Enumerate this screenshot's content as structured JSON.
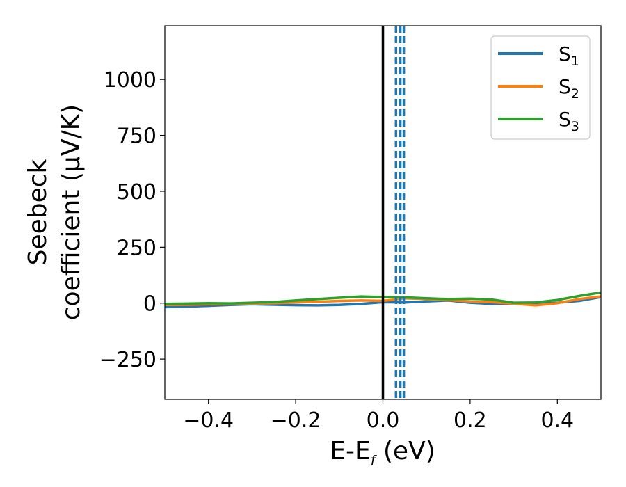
{
  "chart_data": {
    "type": "line",
    "xlabel": {
      "main": "E-E",
      "sub": "f",
      "suffix": " (eV)"
    },
    "ylabel": [
      "Seebeck",
      "coefficient  (μV/K)"
    ],
    "xlim": [
      -0.5,
      0.5
    ],
    "ylim": [
      -430,
      1240
    ],
    "xticks": [
      -0.4,
      -0.2,
      0.0,
      0.2,
      0.4
    ],
    "xtick_labels": [
      "−0.4",
      "−0.2",
      "0.0",
      "0.2",
      "0.4"
    ],
    "yticks": [
      -250,
      0,
      250,
      500,
      750,
      1000
    ],
    "ytick_labels": [
      "−250",
      "0",
      "250",
      "500",
      "750",
      "1000"
    ],
    "grid": false,
    "legend_position": "top-right",
    "vline_solid": {
      "x": 0.0,
      "color": "#000000"
    },
    "vlines_dashed": {
      "x": [
        0.03,
        0.04,
        0.048
      ],
      "color": "#1f77b4"
    },
    "series": [
      {
        "name": "S",
        "sub": "1",
        "color": "#1f77b4",
        "x": [
          -0.5,
          -0.45,
          -0.4,
          -0.35,
          -0.3,
          -0.25,
          -0.2,
          -0.15,
          -0.1,
          -0.05,
          0.0,
          0.05,
          0.1,
          0.15,
          0.2,
          0.25,
          0.3,
          0.35,
          0.4,
          0.45,
          0.5
        ],
        "y": [
          -18,
          -15,
          -12,
          -8,
          -5,
          -7,
          -9,
          -10,
          -8,
          -3,
          4,
          3,
          8,
          12,
          2,
          -3,
          -2,
          -4,
          2,
          10,
          27
        ]
      },
      {
        "name": "S",
        "sub": "2",
        "color": "#ff7f0e",
        "x": [
          -0.5,
          -0.45,
          -0.4,
          -0.35,
          -0.3,
          -0.25,
          -0.2,
          -0.15,
          -0.1,
          -0.05,
          0.0,
          0.05,
          0.1,
          0.15,
          0.2,
          0.25,
          0.3,
          0.35,
          0.4,
          0.45,
          0.5
        ],
        "y": [
          -8,
          -7,
          -5,
          -3,
          -2,
          0,
          3,
          6,
          10,
          12,
          10,
          22,
          18,
          14,
          8,
          4,
          -2,
          -10,
          0,
          18,
          30
        ]
      },
      {
        "name": "S",
        "sub": "3",
        "color": "#2ca02c",
        "x": [
          -0.5,
          -0.45,
          -0.4,
          -0.35,
          -0.3,
          -0.25,
          -0.2,
          -0.15,
          -0.1,
          -0.05,
          0.0,
          0.05,
          0.1,
          0.15,
          0.2,
          0.25,
          0.3,
          0.35,
          0.4,
          0.45,
          0.5
        ],
        "y": [
          -3,
          -2,
          0,
          -1,
          2,
          5,
          12,
          18,
          24,
          30,
          27,
          26,
          22,
          18,
          20,
          16,
          2,
          3,
          14,
          32,
          48
        ]
      }
    ]
  }
}
